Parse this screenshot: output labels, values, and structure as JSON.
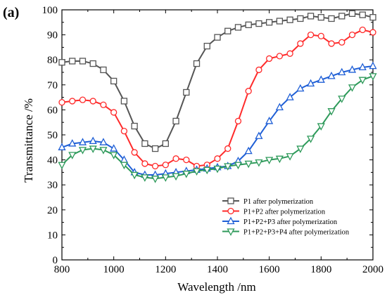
{
  "panel_label": "(a)",
  "chart_data": {
    "type": "line",
    "xlabel": "Wavelength /nm",
    "ylabel": "Transmittance /%",
    "xlim": [
      800,
      2000
    ],
    "ylim": [
      0,
      100
    ],
    "x_ticks": [
      800,
      1000,
      1200,
      1400,
      1600,
      1800,
      2000
    ],
    "y_ticks": [
      0,
      10,
      20,
      30,
      40,
      50,
      60,
      70,
      80,
      90,
      100
    ],
    "grid": false,
    "legend_position": "bottom-right",
    "series": [
      {
        "name": "P1 after polymerization",
        "color": "#555555",
        "marker": "square",
        "x": [
          800,
          840,
          880,
          920,
          960,
          1000,
          1040,
          1080,
          1120,
          1160,
          1200,
          1240,
          1280,
          1320,
          1360,
          1400,
          1440,
          1480,
          1520,
          1560,
          1600,
          1640,
          1680,
          1720,
          1760,
          1800,
          1840,
          1880,
          1920,
          1960,
          2000
        ],
        "y": [
          79,
          79.5,
          79.5,
          78.5,
          76,
          71.5,
          63.5,
          53.5,
          46.5,
          44.5,
          46.5,
          55.5,
          67,
          78.5,
          85.5,
          89,
          91.5,
          93,
          94,
          94.5,
          95,
          95.5,
          96,
          96.5,
          97.5,
          97,
          96.5,
          97.5,
          98.5,
          98,
          97
        ]
      },
      {
        "name": "P1+P2 after polymerization",
        "color": "#ff2a2a",
        "marker": "circle",
        "x": [
          800,
          840,
          880,
          920,
          960,
          1000,
          1040,
          1080,
          1120,
          1160,
          1200,
          1240,
          1280,
          1320,
          1360,
          1400,
          1440,
          1480,
          1520,
          1560,
          1600,
          1640,
          1680,
          1720,
          1760,
          1800,
          1840,
          1880,
          1920,
          1960,
          2000
        ],
        "y": [
          63,
          63.5,
          64,
          63.5,
          62,
          59,
          51.5,
          43,
          38.5,
          37.5,
          38,
          40.5,
          40,
          37.5,
          38,
          40.5,
          44.5,
          55.5,
          67.5,
          76,
          80.5,
          81.5,
          82.5,
          86.5,
          90,
          89.5,
          86.5,
          87,
          90,
          92,
          91
        ]
      },
      {
        "name": "P1+P2+P3 after polymerization",
        "color": "#1f5fd6",
        "marker": "triangle-up",
        "x": [
          800,
          840,
          880,
          920,
          960,
          1000,
          1040,
          1080,
          1120,
          1160,
          1200,
          1240,
          1280,
          1320,
          1360,
          1400,
          1440,
          1480,
          1520,
          1560,
          1600,
          1640,
          1680,
          1720,
          1760,
          1800,
          1840,
          1880,
          1920,
          1960,
          2000
        ],
        "y": [
          45,
          46.5,
          47,
          47.5,
          47,
          44.5,
          40,
          35,
          34,
          34,
          34.5,
          35,
          35.5,
          36,
          36.5,
          37,
          37.5,
          39.5,
          43.5,
          49.5,
          55.5,
          61,
          65,
          68.5,
          70.5,
          72,
          73.5,
          75,
          76,
          77,
          77.5
        ]
      },
      {
        "name": "P1+P2+P3+P4 after polymerization",
        "color": "#2e9a5a",
        "marker": "triangle-down",
        "x": [
          800,
          840,
          880,
          920,
          960,
          1000,
          1040,
          1080,
          1120,
          1160,
          1200,
          1240,
          1280,
          1320,
          1360,
          1400,
          1440,
          1480,
          1520,
          1560,
          1600,
          1640,
          1680,
          1720,
          1760,
          1800,
          1840,
          1880,
          1920,
          1960,
          2000
        ],
        "y": [
          38,
          42,
          44,
          44.5,
          44,
          42,
          38,
          34,
          33,
          32.5,
          33,
          33.5,
          34.5,
          35.5,
          36,
          36.5,
          37.5,
          38,
          38.5,
          39,
          40,
          40.5,
          41.5,
          44.5,
          48.5,
          53.5,
          59.5,
          64.5,
          69,
          72,
          73.5
        ]
      }
    ]
  }
}
